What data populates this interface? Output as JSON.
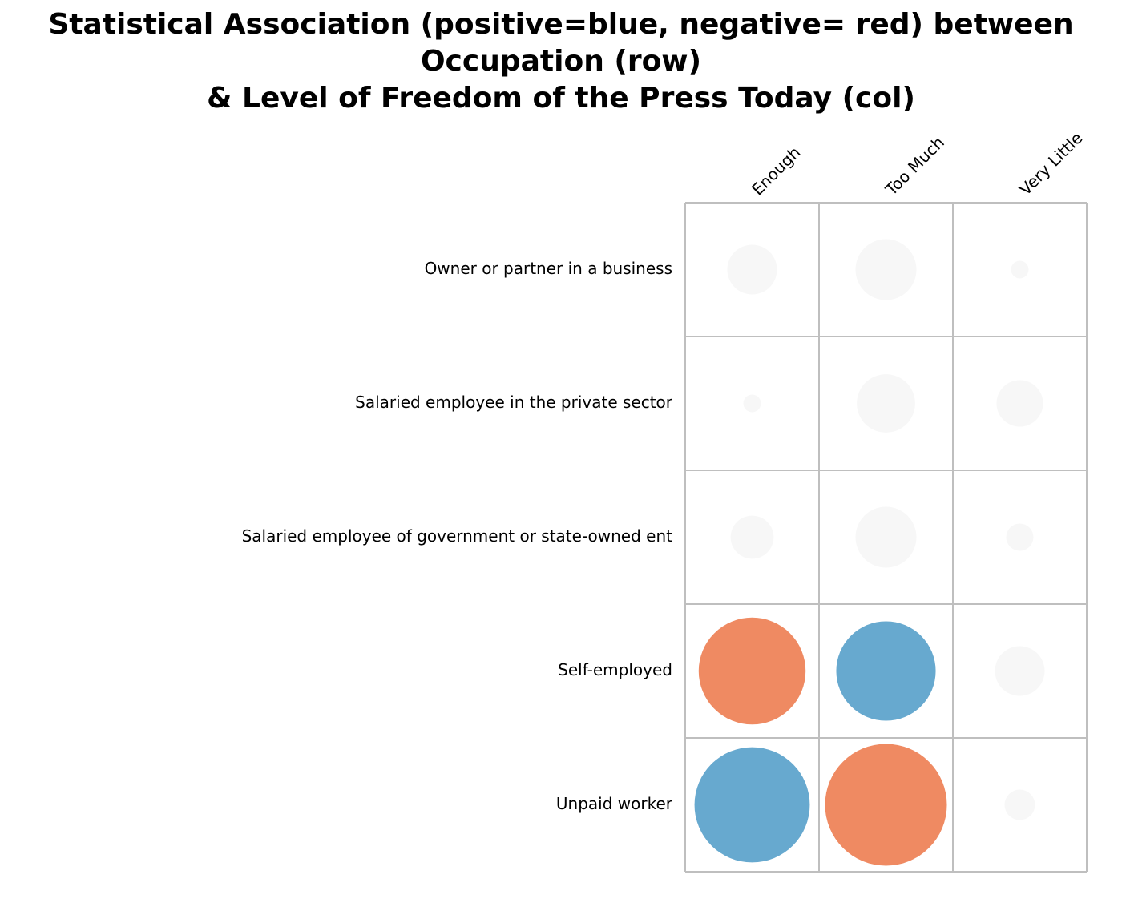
{
  "chart_data": {
    "type": "heatmap",
    "title_lines": [
      "Statistical Association (positive=blue, negative= red) between",
      "Occupation (row)",
      "& Level of Freedom of the Press Today (col)"
    ],
    "columns": [
      "Enough",
      "Too Much",
      "Very Little"
    ],
    "rows": [
      "Owner or partner in a business",
      "Salaried employee in the private sector",
      "Salaried employee of government or state-owned ent",
      "Self-employed",
      "Unpaid worker"
    ],
    "values": [
      [
        -0.4,
        0.6,
        0.05
      ],
      [
        0.05,
        0.55,
        0.35
      ],
      [
        0.3,
        0.6,
        0.12
      ],
      [
        -1.85,
        1.6,
        0.4
      ],
      [
        2.15,
        -2.4,
        0.15
      ]
    ],
    "colors": {
      "positive": "#67a9cf",
      "negative": "#ef8a62",
      "neutral": "#f7f7f7",
      "grid": "#bfbfbf"
    },
    "legend": "none",
    "grid": true
  }
}
